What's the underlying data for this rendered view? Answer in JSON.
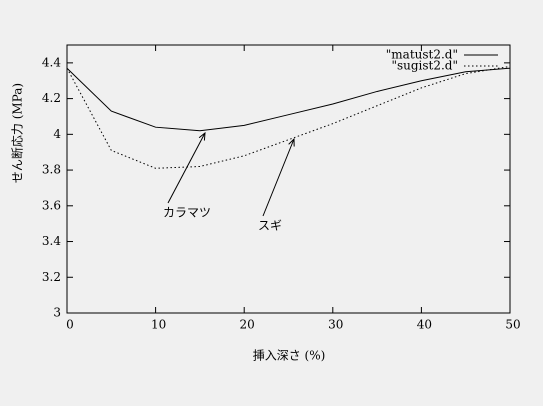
{
  "chart_data": {
    "type": "line",
    "x_label": "挿入深さ (%)",
    "y_label": "せん断応力 (MPa)",
    "x": [
      0,
      5,
      10,
      15,
      20,
      25,
      30,
      35,
      40,
      45,
      50
    ],
    "series": [
      {
        "name": "\"matust2.d\"",
        "color": "#000000",
        "dash": "solid",
        "values": [
          4.37,
          4.13,
          4.04,
          4.02,
          4.05,
          4.11,
          4.17,
          4.24,
          4.3,
          4.35,
          4.37
        ]
      },
      {
        "name": "\"sugist2.d\"",
        "color": "#000000",
        "dash": "dotted",
        "values": [
          4.37,
          3.91,
          3.81,
          3.82,
          3.88,
          3.97,
          4.06,
          4.16,
          4.26,
          4.34,
          4.38
        ]
      }
    ],
    "annotations": [
      "カラマツ",
      "スギ"
    ],
    "xlim": [
      0,
      50
    ],
    "xticks": [
      0,
      10,
      20,
      30,
      40,
      50
    ],
    "ylim": [
      3,
      4.5
    ],
    "yticks": [
      3,
      3.2,
      3.4,
      3.6,
      3.8,
      4,
      4.2,
      4.4
    ],
    "legend": "top-right"
  }
}
